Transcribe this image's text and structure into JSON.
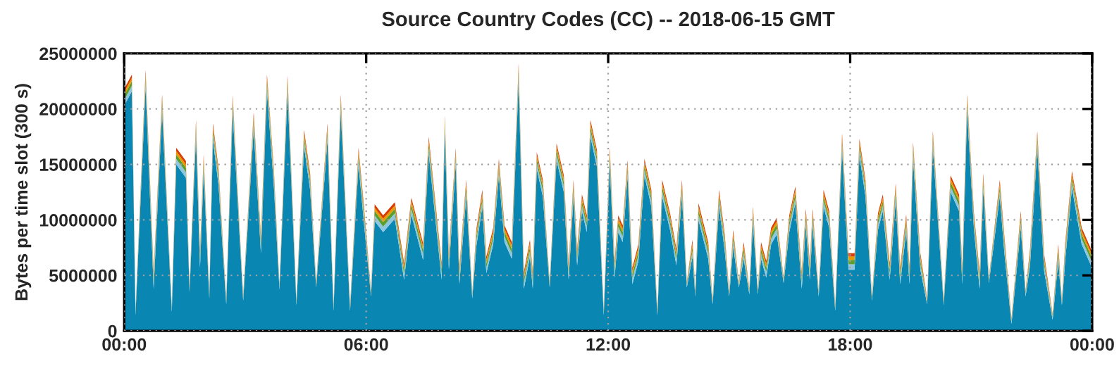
{
  "chart_data": {
    "type": "area",
    "stacked": true,
    "title": "Source Country Codes (CC) -- 2018-06-15 GMT",
    "ylabel": "Bytes per time slot (300 s)",
    "x": [
      0.0,
      0.19,
      0.28,
      0.53,
      0.73,
      0.94,
      1.18,
      1.29,
      1.53,
      1.62,
      1.78,
      1.88,
      1.97,
      2.11,
      2.2,
      2.34,
      2.53,
      2.69,
      2.95,
      3.21,
      3.39,
      3.54,
      3.71,
      3.85,
      4.05,
      4.27,
      4.46,
      4.61,
      4.76,
      5.04,
      5.19,
      5.37,
      5.6,
      5.81,
      5.95,
      6.12,
      6.21,
      6.42,
      6.71,
      6.94,
      7.12,
      7.41,
      7.55,
      7.87,
      7.95,
      8.05,
      8.22,
      8.31,
      8.48,
      8.63,
      8.73,
      8.88,
      8.98,
      9.15,
      9.29,
      9.43,
      9.61,
      9.78,
      9.91,
      10.06,
      10.13,
      10.23,
      10.38,
      10.55,
      10.72,
      10.9,
      11.02,
      11.14,
      11.23,
      11.35,
      11.47,
      11.56,
      11.72,
      11.89,
      12.04,
      12.16,
      12.25,
      12.36,
      12.48,
      12.6,
      12.75,
      12.9,
      13.07,
      13.22,
      13.34,
      13.54,
      13.69,
      13.83,
      13.95,
      14.09,
      14.16,
      14.24,
      14.48,
      14.59,
      14.75,
      14.89,
      15.0,
      15.1,
      15.24,
      15.36,
      15.5,
      15.59,
      15.71,
      15.79,
      15.92,
      16.04,
      16.18,
      16.35,
      16.49,
      16.64,
      16.8,
      16.9,
      17.0,
      17.07,
      17.22,
      17.34,
      17.48,
      17.63,
      17.8,
      17.96,
      18.11,
      18.23,
      18.38,
      18.54,
      18.69,
      18.81,
      18.98,
      19.13,
      19.24,
      19.39,
      19.47,
      19.56,
      19.74,
      19.91,
      20.05,
      20.32,
      20.49,
      20.7,
      20.78,
      20.9,
      21.07,
      21.21,
      21.3,
      21.44,
      21.71,
      21.82,
      22.0,
      22.23,
      22.35,
      22.46,
      22.64,
      22.81,
      23.02,
      23.16,
      23.25,
      23.33,
      23.5,
      23.74,
      23.97,
      24.0
    ],
    "series": [
      {
        "color": "#0a86b3",
        "values": [
          20300000,
          21600000,
          1400000,
          22000000,
          3800000,
          19800000,
          1700000,
          15000000,
          13800000,
          3500000,
          17500000,
          5700000,
          14400000,
          2900000,
          17200000,
          13100000,
          2400000,
          19700000,
          2700000,
          18200000,
          7000000,
          21600000,
          13100000,
          3700000,
          21500000,
          2300000,
          16600000,
          12700000,
          3900000,
          17200000,
          1800000,
          19800000,
          1800000,
          15000000,
          9500000,
          3100000,
          9900000,
          8900000,
          10100000,
          4600000,
          10500000,
          6400000,
          16000000,
          4600000,
          17900000,
          5500000,
          15000000,
          4200000,
          12100000,
          2900000,
          7600000,
          11200000,
          5200000,
          7800000,
          14000000,
          8000000,
          6500000,
          22600000,
          3800000,
          6700000,
          3800000,
          14600000,
          12100000,
          3900000,
          15400000,
          12500000,
          4600000,
          12100000,
          5900000,
          10800000,
          8900000,
          17500000,
          14800000,
          1400000,
          15000000,
          4800000,
          8900000,
          8000000,
          13900000,
          4200000,
          6300000,
          14000000,
          11200000,
          1400000,
          12100000,
          9000000,
          5900000,
          12100000,
          3900000,
          6700000,
          3100000,
          10000000,
          6500000,
          2400000,
          11200000,
          7200000,
          3100000,
          7600000,
          3900000,
          6500000,
          3300000,
          9700000,
          3300000,
          6500000,
          4800000,
          7800000,
          8700000,
          4300000,
          8900000,
          11500000,
          3800000,
          9500000,
          4600000,
          9500000,
          3100000,
          11200000,
          9300000,
          1800000,
          16300000,
          5500000,
          5500000,
          15800000,
          12100000,
          2700000,
          9100000,
          10800000,
          4600000,
          11800000,
          4200000,
          9000000,
          4200000,
          15500000,
          5500000,
          2400000,
          16500000,
          2300000,
          12500000,
          10800000,
          4200000,
          19800000,
          9100000,
          3800000,
          12700000,
          4300000,
          12100000,
          7200000,
          600000,
          9300000,
          3100000,
          5900000,
          16500000,
          5400000,
          1000000,
          6300000,
          2300000,
          6300000,
          12900000,
          7800000,
          5900000,
          5500000
        ]
      },
      {
        "color": "#8ec6df",
        "values": [
          500000,
          500000,
          200000,
          500000,
          500000,
          500000,
          200000,
          500000,
          500000,
          200000,
          500000,
          500000,
          500000,
          200000,
          500000,
          500000,
          200000,
          500000,
          200000,
          500000,
          500000,
          500000,
          500000,
          200000,
          500000,
          200000,
          500000,
          500000,
          200000,
          500000,
          200000,
          500000,
          200000,
          500000,
          500000,
          200000,
          500000,
          500000,
          500000,
          500000,
          500000,
          500000,
          500000,
          500000,
          500000,
          500000,
          500000,
          500000,
          500000,
          200000,
          500000,
          500000,
          500000,
          500000,
          500000,
          500000,
          500000,
          500000,
          500000,
          500000,
          500000,
          500000,
          500000,
          200000,
          500000,
          500000,
          500000,
          500000,
          500000,
          500000,
          500000,
          500000,
          500000,
          200000,
          500000,
          500000,
          500000,
          500000,
          500000,
          500000,
          500000,
          500000,
          500000,
          200000,
          500000,
          500000,
          500000,
          500000,
          200000,
          500000,
          200000,
          500000,
          500000,
          200000,
          500000,
          500000,
          200000,
          500000,
          200000,
          500000,
          200000,
          500000,
          200000,
          500000,
          500000,
          500000,
          500000,
          200000,
          500000,
          500000,
          500000,
          500000,
          500000,
          500000,
          200000,
          500000,
          500000,
          200000,
          500000,
          500000,
          500000,
          500000,
          500000,
          200000,
          500000,
          500000,
          500000,
          500000,
          500000,
          500000,
          500000,
          500000,
          500000,
          200000,
          500000,
          200000,
          500000,
          500000,
          500000,
          500000,
          500000,
          500000,
          500000,
          200000,
          500000,
          500000,
          200000,
          500000,
          200000,
          500000,
          500000,
          500000,
          200000,
          500000,
          200000,
          500000,
          500000,
          500000,
          500000,
          500000
        ]
      },
      {
        "color": "#5a9e2e",
        "values": [
          400000,
          400000,
          100000,
          400000,
          400000,
          400000,
          100000,
          400000,
          400000,
          100000,
          400000,
          400000,
          400000,
          100000,
          400000,
          400000,
          100000,
          400000,
          100000,
          400000,
          400000,
          400000,
          400000,
          100000,
          400000,
          100000,
          400000,
          400000,
          100000,
          400000,
          100000,
          400000,
          100000,
          400000,
          400000,
          100000,
          400000,
          400000,
          400000,
          400000,
          400000,
          400000,
          400000,
          400000,
          400000,
          400000,
          400000,
          400000,
          400000,
          100000,
          400000,
          400000,
          400000,
          400000,
          400000,
          400000,
          400000,
          400000,
          400000,
          400000,
          400000,
          400000,
          400000,
          100000,
          400000,
          400000,
          400000,
          400000,
          400000,
          400000,
          400000,
          400000,
          400000,
          100000,
          400000,
          400000,
          400000,
          400000,
          400000,
          400000,
          400000,
          400000,
          400000,
          100000,
          400000,
          400000,
          400000,
          400000,
          100000,
          400000,
          100000,
          400000,
          400000,
          100000,
          400000,
          400000,
          100000,
          400000,
          100000,
          400000,
          100000,
          400000,
          100000,
          400000,
          400000,
          400000,
          400000,
          100000,
          400000,
          400000,
          400000,
          400000,
          400000,
          400000,
          100000,
          400000,
          400000,
          100000,
          400000,
          400000,
          400000,
          400000,
          400000,
          100000,
          400000,
          400000,
          400000,
          400000,
          400000,
          400000,
          400000,
          400000,
          400000,
          100000,
          400000,
          100000,
          400000,
          400000,
          400000,
          400000,
          400000,
          400000,
          400000,
          100000,
          400000,
          400000,
          100000,
          400000,
          100000,
          400000,
          400000,
          400000,
          100000,
          400000,
          100000,
          400000,
          400000,
          400000,
          400000,
          400000
        ]
      },
      {
        "color": "#e89a00",
        "values": [
          300000,
          300000,
          100000,
          300000,
          300000,
          300000,
          100000,
          300000,
          300000,
          100000,
          300000,
          300000,
          300000,
          100000,
          300000,
          300000,
          100000,
          300000,
          100000,
          300000,
          300000,
          300000,
          300000,
          100000,
          300000,
          100000,
          300000,
          300000,
          100000,
          300000,
          100000,
          300000,
          100000,
          300000,
          300000,
          100000,
          300000,
          300000,
          300000,
          300000,
          300000,
          300000,
          300000,
          300000,
          300000,
          300000,
          300000,
          300000,
          300000,
          100000,
          300000,
          300000,
          300000,
          300000,
          300000,
          300000,
          300000,
          300000,
          300000,
          300000,
          300000,
          300000,
          300000,
          100000,
          300000,
          300000,
          300000,
          300000,
          300000,
          300000,
          300000,
          300000,
          300000,
          100000,
          300000,
          300000,
          300000,
          300000,
          300000,
          300000,
          300000,
          300000,
          300000,
          100000,
          300000,
          300000,
          300000,
          300000,
          100000,
          300000,
          100000,
          300000,
          300000,
          100000,
          300000,
          300000,
          100000,
          300000,
          100000,
          300000,
          100000,
          300000,
          100000,
          300000,
          300000,
          300000,
          300000,
          100000,
          300000,
          300000,
          300000,
          300000,
          300000,
          300000,
          100000,
          300000,
          300000,
          100000,
          300000,
          300000,
          300000,
          300000,
          300000,
          100000,
          300000,
          300000,
          300000,
          300000,
          300000,
          300000,
          300000,
          300000,
          300000,
          100000,
          300000,
          100000,
          300000,
          300000,
          300000,
          300000,
          300000,
          300000,
          300000,
          100000,
          300000,
          300000,
          100000,
          300000,
          100000,
          300000,
          300000,
          300000,
          100000,
          300000,
          100000,
          300000,
          300000,
          300000,
          300000,
          300000
        ]
      },
      {
        "color": "#d83c00",
        "values": [
          300000,
          300000,
          100000,
          300000,
          300000,
          300000,
          100000,
          300000,
          300000,
          100000,
          300000,
          300000,
          300000,
          100000,
          300000,
          300000,
          100000,
          300000,
          100000,
          300000,
          300000,
          300000,
          300000,
          100000,
          300000,
          100000,
          300000,
          300000,
          100000,
          300000,
          100000,
          300000,
          100000,
          300000,
          300000,
          100000,
          300000,
          300000,
          300000,
          300000,
          300000,
          300000,
          300000,
          300000,
          300000,
          300000,
          300000,
          300000,
          300000,
          100000,
          300000,
          300000,
          300000,
          300000,
          300000,
          300000,
          300000,
          300000,
          300000,
          300000,
          300000,
          300000,
          300000,
          100000,
          300000,
          300000,
          300000,
          300000,
          300000,
          300000,
          300000,
          300000,
          300000,
          100000,
          300000,
          300000,
          300000,
          300000,
          300000,
          300000,
          300000,
          300000,
          300000,
          100000,
          300000,
          300000,
          300000,
          300000,
          100000,
          300000,
          100000,
          300000,
          300000,
          100000,
          300000,
          300000,
          100000,
          300000,
          100000,
          300000,
          100000,
          300000,
          100000,
          300000,
          300000,
          300000,
          300000,
          100000,
          300000,
          300000,
          300000,
          300000,
          300000,
          300000,
          100000,
          300000,
          300000,
          100000,
          300000,
          300000,
          300000,
          300000,
          300000,
          100000,
          300000,
          300000,
          300000,
          300000,
          300000,
          300000,
          300000,
          300000,
          300000,
          100000,
          300000,
          100000,
          300000,
          300000,
          300000,
          300000,
          300000,
          300000,
          300000,
          100000,
          300000,
          300000,
          100000,
          300000,
          100000,
          300000,
          300000,
          300000,
          100000,
          300000,
          100000,
          300000,
          300000,
          300000,
          300000,
          300000
        ]
      }
    ],
    "xlim": [
      0,
      24
    ],
    "xticks": [
      {
        "value": 0,
        "label": "00:00"
      },
      {
        "value": 6,
        "label": "06:00"
      },
      {
        "value": 12,
        "label": "12:00"
      },
      {
        "value": 18,
        "label": "18:00"
      },
      {
        "value": 24,
        "label": "00:00"
      }
    ],
    "ylim": [
      0,
      25000000
    ],
    "yticks": [
      0,
      5000000,
      10000000,
      15000000,
      20000000,
      25000000
    ],
    "grid": true
  }
}
